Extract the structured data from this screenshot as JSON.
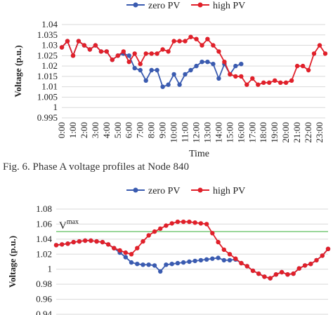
{
  "caption": "Fig. 6.  Phase A voltage profiles at Node 840",
  "colors": {
    "zero": "#3a5bb0",
    "high": "#e0202a",
    "vmax": "#5fbf5f",
    "grid": "#d9d9d9"
  },
  "chart_data": [
    {
      "type": "line",
      "legend": {
        "position": "top"
      },
      "xlabel": "Time",
      "ylabel": "Voltage (p.u.)",
      "ylim": [
        0.995,
        1.04
      ],
      "yticks": [
        "0.995",
        "1",
        "1.005",
        "1.01",
        "1.015",
        "1.02",
        "1.025",
        "1.03",
        "1.035",
        "1.04"
      ],
      "grid": true,
      "categories": [
        "0:00",
        "1:00",
        "2:00",
        "3:00",
        "4:00",
        "5:00",
        "6:00",
        "7:00",
        "8:00",
        "9:00",
        "10:00",
        "11:00",
        "12:00",
        "13:00",
        "14:00",
        "15:00",
        "16:00",
        "17:00",
        "18:00",
        "19:00",
        "20:00",
        "21:00",
        "22:00",
        "23:00"
      ],
      "x": [
        0,
        0.5,
        1,
        1.5,
        2,
        2.5,
        3,
        3.5,
        4,
        4.5,
        5,
        5.5,
        6,
        6.5,
        7,
        7.5,
        8,
        8.5,
        9,
        9.5,
        10,
        10.5,
        11,
        11.5,
        12,
        12.5,
        13,
        13.5,
        14,
        14.5,
        15,
        15.5,
        16,
        16.5,
        17,
        17.5,
        18,
        18.5,
        19,
        19.5,
        20,
        20.5,
        21,
        21.5,
        22,
        22.5,
        23,
        23.5
      ],
      "series": [
        {
          "name": "zero PV",
          "values": [
            1.029,
            1.032,
            1.025,
            1.032,
            1.03,
            1.028,
            1.03,
            1.027,
            1.027,
            1.023,
            1.025,
            1.026,
            1.025,
            1.019,
            1.018,
            1.013,
            1.018,
            1.018,
            1.01,
            1.011,
            1.016,
            1.011,
            1.016,
            1.018,
            1.02,
            1.022,
            1.022,
            1.021,
            1.014,
            1.021,
            1.016,
            1.02,
            1.021,
            null,
            null,
            null,
            null,
            null,
            null,
            null,
            null,
            null,
            null,
            null,
            null,
            null,
            null,
            null
          ]
        },
        {
          "name": "high PV",
          "values": [
            1.029,
            1.032,
            1.025,
            1.032,
            1.03,
            1.028,
            1.03,
            1.027,
            1.027,
            1.023,
            1.025,
            1.027,
            1.022,
            1.026,
            1.021,
            1.026,
            1.026,
            1.026,
            1.028,
            1.027,
            1.032,
            1.032,
            1.032,
            1.034,
            1.033,
            1.03,
            1.033,
            1.03,
            1.027,
            1.022,
            1.016,
            1.015,
            1.015,
            1.011,
            1.014,
            1.011,
            1.012,
            1.012,
            1.013,
            1.012,
            1.012,
            1.013,
            1.02,
            1.02,
            1.018,
            1.026,
            1.03,
            1.026
          ]
        }
      ]
    },
    {
      "type": "line",
      "legend": {
        "position": "top"
      },
      "ylabel": "Voltage (p.u.)",
      "ylim": [
        0.94,
        1.08
      ],
      "yticks": [
        "0.94",
        "0.96",
        "0.98",
        "1",
        "1.02",
        "1.04",
        "1.06",
        "1.08"
      ],
      "grid": true,
      "annotation": {
        "text": "V",
        "superscript": "max",
        "y": 1.05
      },
      "x": [
        0,
        0.5,
        1,
        1.5,
        2,
        2.5,
        3,
        3.5,
        4,
        4.5,
        5,
        5.5,
        6,
        6.5,
        7,
        7.5,
        8,
        8.5,
        9,
        9.5,
        10,
        10.5,
        11,
        11.5,
        12,
        12.5,
        13,
        13.5,
        14,
        14.5,
        15,
        15.5,
        16,
        16.5,
        17,
        17.5,
        18,
        18.5,
        19,
        19.5,
        20,
        20.5,
        21,
        21.5,
        22,
        22.5,
        23,
        23.5
      ],
      "series": [
        {
          "name": "zero PV",
          "values": [
            1.032,
            1.033,
            1.034,
            1.036,
            1.037,
            1.038,
            1.038,
            1.037,
            1.036,
            1.033,
            1.028,
            1.022,
            1.016,
            1.009,
            1.007,
            1.006,
            1.006,
            1.005,
            0.997,
            1.006,
            1.007,
            1.008,
            1.009,
            1.01,
            1.011,
            1.012,
            1.013,
            1.014,
            1.015,
            1.012,
            1.012,
            1.013,
            1.008,
            1.004,
            0.998,
            0.994,
            0.99,
            0.988,
            0.993,
            0.996,
            0.993,
            0.994,
            1.001,
            1.005,
            1.007,
            1.012,
            1.018,
            1.027
          ]
        },
        {
          "name": "high PV",
          "values": [
            1.032,
            1.033,
            1.034,
            1.036,
            1.037,
            1.038,
            1.038,
            1.037,
            1.036,
            1.033,
            1.028,
            1.025,
            1.022,
            1.02,
            1.028,
            1.037,
            1.045,
            1.05,
            1.054,
            1.058,
            1.061,
            1.063,
            1.063,
            1.063,
            1.062,
            1.061,
            1.06,
            1.048,
            1.036,
            1.026,
            1.02,
            1.014,
            1.008,
            1.004,
            0.998,
            0.994,
            0.99,
            0.988,
            0.993,
            0.996,
            0.993,
            0.994,
            1.001,
            1.005,
            1.007,
            1.012,
            1.018,
            1.027
          ]
        }
      ]
    }
  ]
}
